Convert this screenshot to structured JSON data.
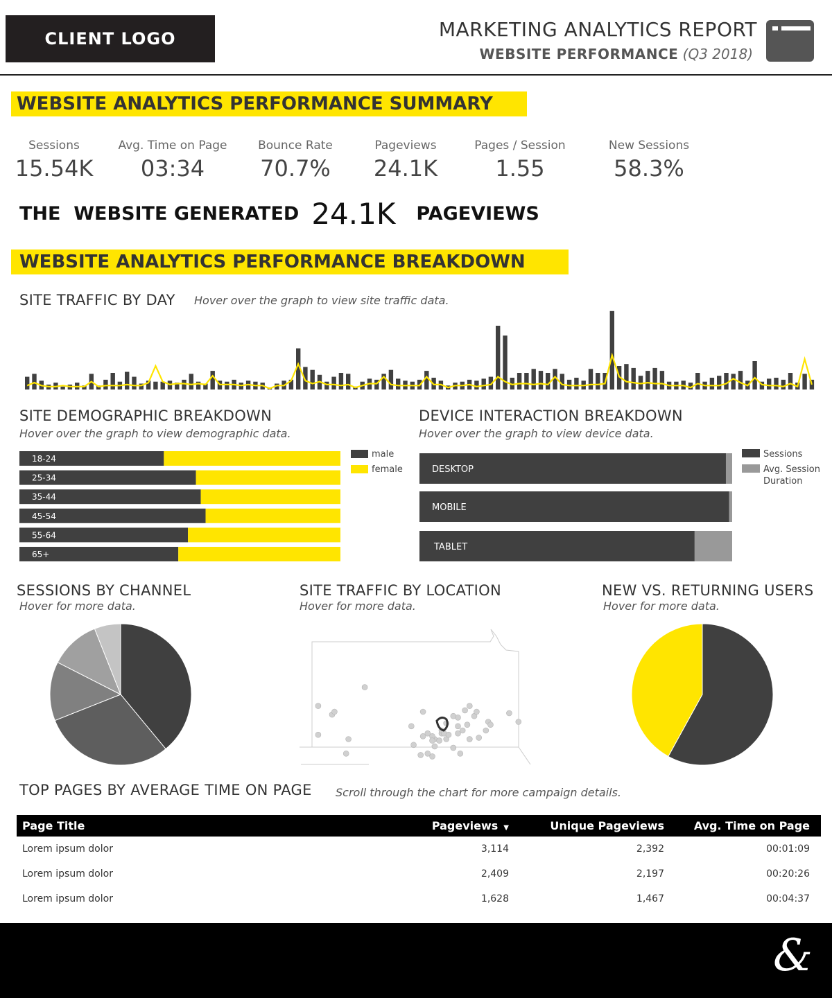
{
  "header": {
    "logo": "CLIENT LOGO",
    "title": "MARKETING ANALYTICS REPORT",
    "subtitle_bold": "WEBSITE PERFORMANCE",
    "subtitle_period": "(Q3 2018)",
    "icon": "window-icon"
  },
  "summary": {
    "banner": "WEBSITE ANALYTICS PERFORMANCE SUMMARY",
    "kpis": [
      {
        "label": "Sessions",
        "value": "15.54K"
      },
      {
        "label": "Avg. Time on Page",
        "value": "03:34"
      },
      {
        "label": "Bounce Rate",
        "value": "70.7%"
      },
      {
        "label": "Pageviews",
        "value": "24.1K"
      },
      {
        "label": "Pages / Session",
        "value": "1.55"
      },
      {
        "label": "New Sessions",
        "value": "58.3%"
      }
    ],
    "headline_pre": "THE  WEBSITE GENERATED",
    "headline_value": "24.1K",
    "headline_post": "PAGEVIEWS"
  },
  "breakdown": {
    "banner": "WEBSITE ANALYTICS PERFORMANCE BREAKDOWN"
  },
  "traffic_by_day": {
    "title": "SITE TRAFFIC BY DAY",
    "hint": "Hover over the graph to view site traffic data."
  },
  "demographic": {
    "title": "SITE DEMOGRAPHIC BREAKDOWN",
    "hint": "Hover over the graph to view demographic data.",
    "legend": [
      "male",
      "female"
    ]
  },
  "device": {
    "title": "DEVICE INTERACTION BREAKDOWN",
    "hint": "Hover over the graph to view device data.",
    "legend": [
      "Sessions",
      "Avg. Session Duration"
    ]
  },
  "channel": {
    "title": "SESSIONS BY CHANNEL",
    "hint": "Hover for more data."
  },
  "location": {
    "title": "SITE TRAFFIC BY LOCATION",
    "hint": "Hover for more data."
  },
  "new_returning": {
    "title": "NEW VS. RETURNING USERS",
    "hint": "Hover for more data."
  },
  "top_pages": {
    "title": "TOP PAGES BY AVERAGE TIME ON PAGE",
    "hint": "Scroll through the chart for more campaign details.",
    "columns": [
      "Page Title",
      "Pageviews",
      "Unique Pageviews",
      "Avg. Time on Page"
    ],
    "sort_icon": "sort-down-icon",
    "rows": [
      [
        "Lorem ipsum dolor",
        "3,114",
        "2,392",
        "00:01:09"
      ],
      [
        "Lorem ipsum dolor",
        "2,409",
        "2,197",
        "00:20:26"
      ],
      [
        "Lorem ipsum dolor",
        "1,628",
        "1,467",
        "00:04:37"
      ]
    ]
  },
  "footer": {
    "mark": "&"
  },
  "colors": {
    "dark": "#404040",
    "yellow": "#ffe500",
    "grey": "#999999"
  },
  "chart_data": [
    {
      "id": "traffic",
      "type": "bar",
      "bars": [
        13,
        16,
        9,
        5,
        7,
        3,
        5,
        7,
        4,
        16,
        4,
        10,
        17,
        8,
        18,
        13,
        6,
        9,
        8,
        8,
        9,
        7,
        10,
        16,
        8,
        6,
        19,
        9,
        8,
        10,
        7,
        9,
        8,
        7,
        2,
        6,
        9,
        10,
        42,
        23,
        20,
        15,
        8,
        13,
        17,
        16,
        3,
        8,
        11,
        10,
        16,
        20,
        11,
        9,
        8,
        10,
        19,
        12,
        9,
        4,
        7,
        8,
        10,
        9,
        11,
        13,
        65,
        55,
        12,
        17,
        17,
        21,
        19,
        17,
        21,
        16,
        10,
        12,
        9,
        21,
        17,
        17,
        80,
        24,
        26,
        22,
        14,
        19,
        22,
        19,
        8,
        8,
        9,
        7,
        17,
        8,
        12,
        14,
        17,
        16,
        19,
        9,
        29,
        8,
        11,
        12,
        10,
        17,
        7,
        16,
        10
      ],
      "line": [
        4,
        7,
        4,
        3,
        3,
        4,
        3,
        3,
        3,
        8,
        3,
        4,
        4,
        4,
        5,
        4,
        4,
        7,
        24,
        8,
        5,
        6,
        6,
        5,
        6,
        5,
        14,
        5,
        5,
        5,
        4,
        5,
        4,
        4,
        1,
        4,
        4,
        9,
        26,
        9,
        6,
        8,
        5,
        5,
        4,
        5,
        2,
        4,
        6,
        6,
        13,
        5,
        4,
        4,
        4,
        4,
        13,
        5,
        5,
        2,
        4,
        4,
        5,
        3,
        4,
        5,
        13,
        8,
        5,
        6,
        6,
        5,
        6,
        5,
        13,
        5,
        4,
        4,
        4,
        5,
        5,
        6,
        35,
        13,
        8,
        7,
        6,
        7,
        6,
        6,
        4,
        4,
        4,
        2,
        6,
        4,
        4,
        4,
        6,
        11,
        7,
        4,
        12,
        5,
        4,
        4,
        3,
        6,
        3,
        31,
        5
      ]
    },
    {
      "id": "demographic",
      "type": "bar",
      "orientation": "horizontal-stacked-100",
      "categories": [
        "18-24",
        "25-34",
        "35-44",
        "45-54",
        "55-64",
        "65+"
      ],
      "series": [
        {
          "name": "male",
          "values": [
            45,
            55,
            56.5,
            58,
            52.5,
            49.5
          ]
        },
        {
          "name": "female",
          "values": [
            55,
            45,
            43.5,
            42,
            47.5,
            50.5
          ]
        }
      ]
    },
    {
      "id": "device",
      "type": "bar",
      "orientation": "horizontal-stacked-100",
      "categories": [
        "DESKTOP",
        "MOBILE",
        "TABLET"
      ],
      "series": [
        {
          "name": "Sessions",
          "values": [
            98,
            99,
            88
          ]
        },
        {
          "name": "Avg. Session Duration",
          "values": [
            2,
            1,
            12
          ]
        }
      ]
    },
    {
      "id": "channel",
      "type": "pie",
      "values": [
        39,
        30,
        13.5,
        11.5,
        6
      ],
      "colors": [
        "#404040",
        "#5e5e5e",
        "#808080",
        "#a0a0a0",
        "#c4c4c4"
      ]
    },
    {
      "id": "location",
      "type": "scatter",
      "points": [
        [
          14,
          64
        ],
        [
          28,
          45
        ],
        [
          21,
          81
        ],
        [
          8,
          58
        ],
        [
          8,
          78
        ],
        [
          15,
          62
        ],
        [
          20,
          91
        ],
        [
          48,
          72
        ],
        [
          63,
          81
        ],
        [
          68,
          66
        ],
        [
          55,
          77
        ],
        [
          53,
          62
        ],
        [
          49,
          85
        ],
        [
          53,
          79
        ],
        [
          61,
          77
        ],
        [
          66,
          87
        ],
        [
          63,
          70
        ],
        [
          58,
          81
        ],
        [
          58,
          86
        ],
        [
          71,
          61
        ],
        [
          72,
          71
        ],
        [
          73,
          81
        ],
        [
          77,
          80
        ],
        [
          75,
          65
        ],
        [
          81,
          69
        ],
        [
          82,
          71
        ],
        [
          80,
          75
        ],
        [
          57,
          79
        ],
        [
          61,
          75
        ],
        [
          68,
          77
        ],
        [
          57,
          82
        ],
        [
          66,
          87
        ],
        [
          70,
          75
        ],
        [
          52,
          92
        ],
        [
          57,
          93
        ],
        [
          73,
          81
        ],
        [
          90,
          63
        ],
        [
          94,
          69
        ],
        [
          66,
          65
        ],
        [
          62,
          77
        ],
        [
          69,
          91
        ],
        [
          68,
          72
        ],
        [
          64,
          78
        ],
        [
          55,
          91
        ],
        [
          60,
          82
        ],
        [
          73,
          58
        ],
        [
          76,
          62
        ]
      ]
    },
    {
      "id": "new_returning",
      "type": "pie",
      "values": [
        58,
        42
      ],
      "colors": [
        "#404040",
        "#ffe500"
      ]
    }
  ]
}
